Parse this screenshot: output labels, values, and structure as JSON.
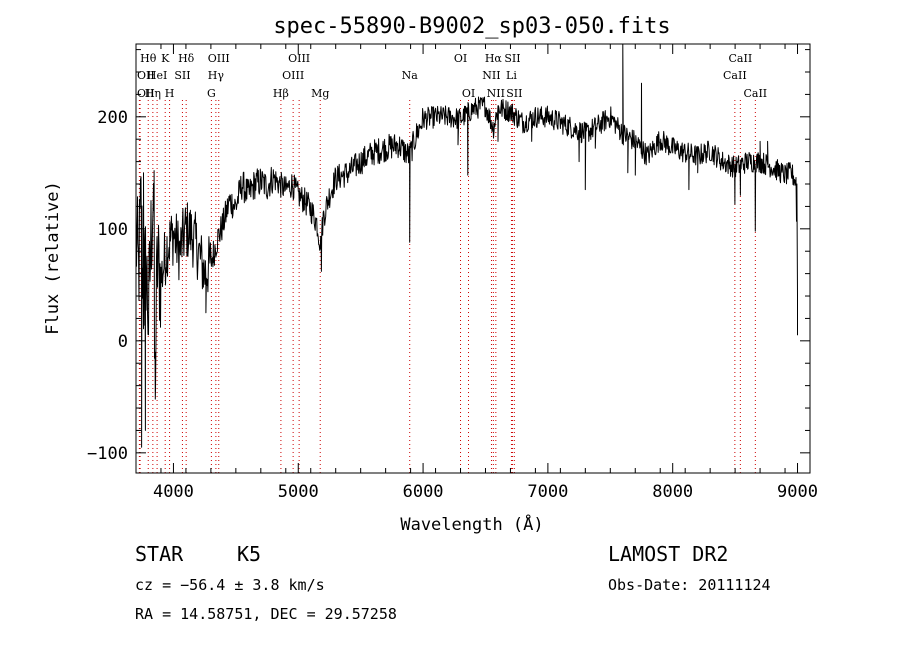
{
  "chart_data": {
    "type": "line",
    "title": "spec-55890-B9002_sp03-050.fits",
    "xlabel": "Wavelength (Å)",
    "ylabel": "Flux (relative)",
    "xlim": [
      3700,
      9100
    ],
    "ylim": [
      -118,
      265
    ],
    "x_ticks": [
      4000,
      5000,
      6000,
      7000,
      8000,
      9000
    ],
    "x_tick_labels": [
      "4000",
      "5000",
      "6000",
      "7000",
      "8000",
      "9000"
    ],
    "y_ticks": [
      -100,
      0,
      100,
      200
    ],
    "y_tick_labels": [
      "−100",
      "0",
      "100",
      "200"
    ],
    "grid": false,
    "line_color": "#000000",
    "line_marker_color": "#cc0000",
    "spectrum_anchors": [
      [
        3700,
        95
      ],
      [
        3720,
        60
      ],
      [
        3740,
        120
      ],
      [
        3760,
        40
      ],
      [
        3780,
        70
      ],
      [
        3800,
        20
      ],
      [
        3820,
        90
      ],
      [
        3840,
        140
      ],
      [
        3850,
        -50
      ],
      [
        3870,
        70
      ],
      [
        3900,
        55
      ],
      [
        3950,
        85
      ],
      [
        4000,
        95
      ],
      [
        4050,
        80
      ],
      [
        4100,
        100
      ],
      [
        4150,
        95
      ],
      [
        4200,
        80
      ],
      [
        4250,
        60
      ],
      [
        4300,
        70
      ],
      [
        4350,
        90
      ],
      [
        4400,
        105
      ],
      [
        4450,
        125
      ],
      [
        4500,
        120
      ],
      [
        4550,
        140
      ],
      [
        4600,
        130
      ],
      [
        4650,
        140
      ],
      [
        4700,
        142
      ],
      [
        4750,
        138
      ],
      [
        4800,
        146
      ],
      [
        4850,
        140
      ],
      [
        4900,
        135
      ],
      [
        4950,
        140
      ],
      [
        5000,
        130
      ],
      [
        5050,
        125
      ],
      [
        5100,
        118
      ],
      [
        5150,
        105
      ],
      [
        5180,
        85
      ],
      [
        5200,
        110
      ],
      [
        5250,
        130
      ],
      [
        5300,
        145
      ],
      [
        5400,
        150
      ],
      [
        5500,
        160
      ],
      [
        5600,
        168
      ],
      [
        5700,
        172
      ],
      [
        5800,
        175
      ],
      [
        5890,
        165
      ],
      [
        5950,
        185
      ],
      [
        6000,
        198
      ],
      [
        6100,
        200
      ],
      [
        6200,
        200
      ],
      [
        6300,
        198
      ],
      [
        6400,
        207
      ],
      [
        6500,
        210
      ],
      [
        6563,
        190
      ],
      [
        6600,
        208
      ],
      [
        6700,
        205
      ],
      [
        6800,
        195
      ],
      [
        6900,
        200
      ],
      [
        7000,
        200
      ],
      [
        7100,
        195
      ],
      [
        7200,
        190
      ],
      [
        7300,
        185
      ],
      [
        7400,
        192
      ],
      [
        7500,
        200
      ],
      [
        7600,
        185
      ],
      [
        7700,
        178
      ],
      [
        7800,
        165
      ],
      [
        7900,
        180
      ],
      [
        8000,
        172
      ],
      [
        8100,
        168
      ],
      [
        8200,
        165
      ],
      [
        8300,
        170
      ],
      [
        8400,
        160
      ],
      [
        8500,
        155
      ],
      [
        8600,
        160
      ],
      [
        8700,
        160
      ],
      [
        8800,
        155
      ],
      [
        8900,
        148
      ],
      [
        8950,
        150
      ],
      [
        8990,
        142
      ],
      [
        9000,
        5
      ]
    ],
    "spectrum_spikes": [
      [
        3745,
        -95
      ],
      [
        3760,
        150
      ],
      [
        3775,
        -80
      ],
      [
        3855,
        -52
      ],
      [
        3845,
        152
      ],
      [
        4260,
        25
      ],
      [
        4320,
        70
      ],
      [
        5185,
        62
      ],
      [
        5893,
        88
      ],
      [
        6280,
        175
      ],
      [
        6358,
        148
      ],
      [
        6600,
        178
      ],
      [
        6870,
        178
      ],
      [
        7250,
        160
      ],
      [
        7300,
        135
      ],
      [
        7380,
        172
      ],
      [
        7600,
        265
      ],
      [
        7640,
        150
      ],
      [
        7700,
        148
      ],
      [
        7750,
        230
      ],
      [
        8130,
        135
      ],
      [
        8200,
        150
      ],
      [
        8498,
        122
      ],
      [
        8542,
        130
      ],
      [
        8662,
        98
      ],
      [
        8700,
        178
      ],
      [
        8760,
        178
      ]
    ],
    "line_markers": [
      {
        "x": 3727,
        "label": "OII",
        "row": 2,
        "align": "left"
      },
      {
        "x": 3733,
        "label": "OII",
        "row": 3,
        "align": "left"
      },
      {
        "x": 3798,
        "label": "Hθ",
        "row": 1,
        "align": "center"
      },
      {
        "x": 3835,
        "label": "Hη",
        "row": 3,
        "align": "center"
      },
      {
        "x": 3869,
        "label": "HeI",
        "row": 2,
        "align": "center"
      },
      {
        "x": 3934,
        "label": "K",
        "row": 1,
        "align": "center"
      },
      {
        "x": 3969,
        "label": "H",
        "row": 3,
        "align": "center"
      },
      {
        "x": 4072,
        "label": "SII",
        "row": 2,
        "align": "center"
      },
      {
        "x": 4102,
        "label": "Hδ",
        "row": 1,
        "align": "center"
      },
      {
        "x": 4304,
        "label": "G",
        "row": 3,
        "align": "center"
      },
      {
        "x": 4340,
        "label": "Hγ",
        "row": 2,
        "align": "center"
      },
      {
        "x": 4363,
        "label": "OIII",
        "row": 1,
        "align": "center"
      },
      {
        "x": 4861,
        "label": "Hβ",
        "row": 3,
        "align": "center"
      },
      {
        "x": 4959,
        "label": "OIII",
        "row": 2,
        "align": "center"
      },
      {
        "x": 5007,
        "label": "OIII",
        "row": 1,
        "align": "center"
      },
      {
        "x": 5176,
        "label": "Mg",
        "row": 3,
        "align": "center"
      },
      {
        "x": 5893,
        "label": "Na",
        "row": 2,
        "align": "center"
      },
      {
        "x": 6300,
        "label": "OI",
        "row": 1,
        "align": "center"
      },
      {
        "x": 6364,
        "label": "OI",
        "row": 3,
        "align": "center"
      },
      {
        "x": 6548,
        "label": "NII",
        "row": 2,
        "align": "center"
      },
      {
        "x": 6563,
        "label": "Hα",
        "row": 1,
        "align": "center"
      },
      {
        "x": 6583,
        "label": "NII",
        "row": 3,
        "align": "center"
      },
      {
        "x": 6708,
        "label": "Li",
        "row": 2,
        "align": "center"
      },
      {
        "x": 6716,
        "label": "SII",
        "row": 1,
        "align": "center"
      },
      {
        "x": 6731,
        "label": "SII",
        "row": 3,
        "align": "center"
      },
      {
        "x": 8498,
        "label": "CaII",
        "row": 2,
        "align": "center"
      },
      {
        "x": 8542,
        "label": "CaII",
        "row": 1,
        "align": "center"
      },
      {
        "x": 8662,
        "label": "CaII",
        "row": 3,
        "align": "center"
      }
    ]
  },
  "info": {
    "class": "STAR",
    "subclass": "K5",
    "survey": "LAMOST DR2",
    "redshift": "cz = −56.4 ± 3.8 km/s",
    "obs_date": "Obs-Date: 20111124",
    "coords": "RA =  14.58751, DEC =  29.57258"
  }
}
